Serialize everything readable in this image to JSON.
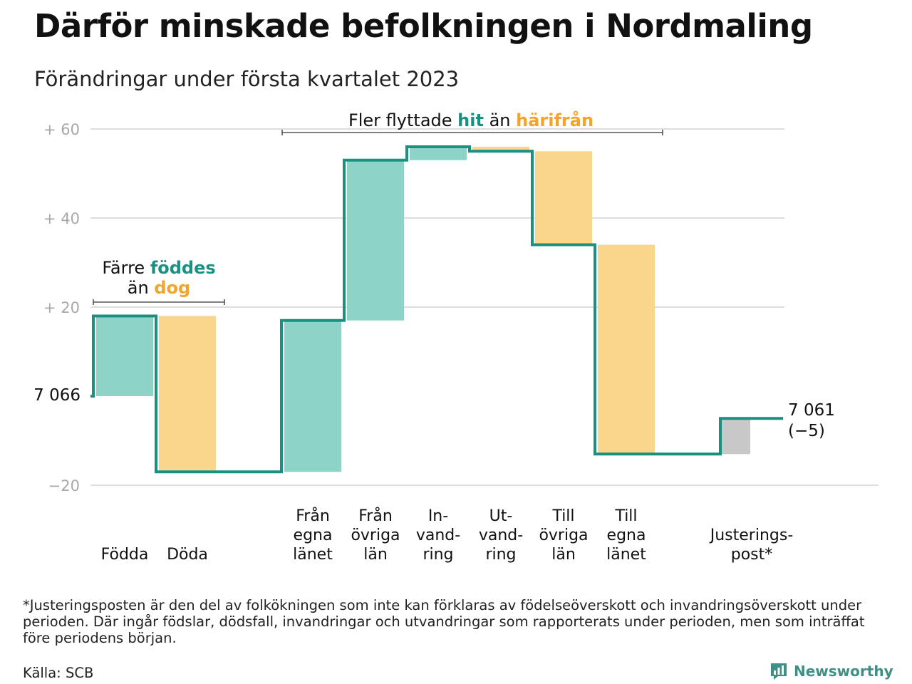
{
  "title": "Därför minskade befolkningen i Nordmaling",
  "subtitle": "Förändringar under första kvartalet 2023",
  "colors": {
    "inflow": "#8dd3c7",
    "outflow": "#fad68c",
    "adjustment": "#c8c8c8",
    "line": "#1a9180",
    "highlight_green": "#1a9180",
    "highlight_orange": "#f2a52a",
    "grid": "#dddddd",
    "tick_text": "#a8a8a8"
  },
  "annotations": {
    "births_deaths": {
      "line1_prefix": "Färre ",
      "line1_highlight": "föddes",
      "line2_prefix": "än ",
      "line2_highlight": "dog"
    },
    "migration": {
      "prefix": "Fler flyttade ",
      "highlight1": "hit",
      "middle": " än ",
      "highlight2": "härifrån"
    }
  },
  "chart_data": {
    "type": "waterfall",
    "start_label": "7 066",
    "end_label": "7 061",
    "end_change_label": "(−5)",
    "ylim": [
      -20,
      60
    ],
    "yticks": [
      {
        "value": 60,
        "label": "+ 60"
      },
      {
        "value": 40,
        "label": "+ 40"
      },
      {
        "value": 20,
        "label": "+ 20"
      },
      {
        "value": -20,
        "label": "−20"
      }
    ],
    "grid": true,
    "steps": [
      {
        "label": [
          "Födda"
        ],
        "start": 0,
        "end": 18,
        "kind": "inflow"
      },
      {
        "label": [
          "Döda"
        ],
        "start": 18,
        "end": -17,
        "kind": "outflow"
      },
      {
        "label": [],
        "start": -17,
        "end": -17,
        "kind": "gap"
      },
      {
        "label": [
          "Från",
          "egna",
          "länet"
        ],
        "start": -17,
        "end": 17,
        "kind": "inflow"
      },
      {
        "label": [
          "Från",
          "övriga",
          "län"
        ],
        "start": 17,
        "end": 53,
        "kind": "inflow"
      },
      {
        "label": [
          "In-",
          "vand-",
          "ring"
        ],
        "start": 53,
        "end": 56,
        "kind": "inflow"
      },
      {
        "label": [
          "Ut-",
          "vand-",
          "ring"
        ],
        "start": 56,
        "end": 55,
        "kind": "outflow"
      },
      {
        "label": [
          "Till",
          "övriga",
          "län"
        ],
        "start": 55,
        "end": 34,
        "kind": "outflow"
      },
      {
        "label": [
          "Till",
          "egna",
          "länet"
        ],
        "start": 34,
        "end": -13,
        "kind": "outflow"
      },
      {
        "label": [],
        "start": -13,
        "end": -13,
        "kind": "gap"
      },
      {
        "label": [
          "Justerings-",
          "post*"
        ],
        "start": -13,
        "end": -5,
        "kind": "adjustment"
      }
    ]
  },
  "footnote": "*Justeringsposten är den del av folkökningen som inte kan förklaras av födelseöverskott och invandringsöverskott under perioden. Där ingår födslar, dödsfall, invandringar och utvandringar som rapporterats under perioden, men som inträffat före periodens början.",
  "source": "Källa: SCB",
  "brand": "Newsworthy"
}
